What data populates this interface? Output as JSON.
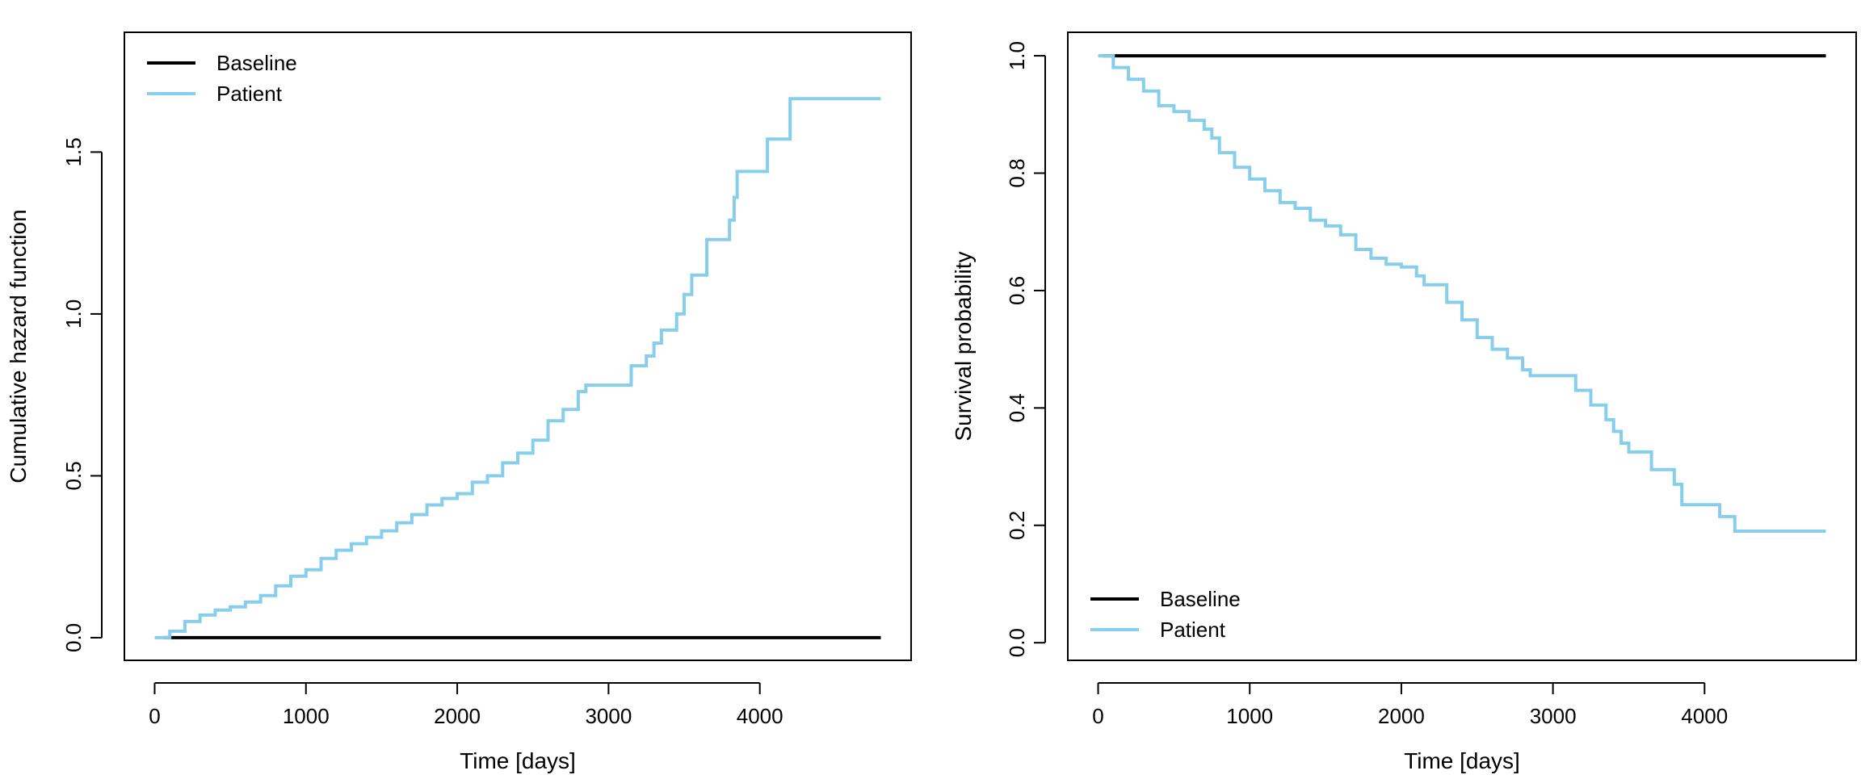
{
  "colors": {
    "baseline": "#000000",
    "patient": "#87ceeb"
  },
  "chart_data": [
    {
      "type": "line",
      "step": true,
      "xlabel": "Time [days]",
      "ylabel": "Cumulative hazard function",
      "xlim": [
        -200,
        5000
      ],
      "ylim": [
        -0.07,
        1.87
      ],
      "xticks": [
        0,
        1000,
        2000,
        3000,
        4000
      ],
      "yticks": [
        0.0,
        0.5,
        1.0,
        1.5
      ],
      "xtick_labels": [
        "0",
        "1000",
        "2000",
        "3000",
        "4000"
      ],
      "ytick_labels": [
        "0.0",
        "0.5",
        "1.0",
        "1.5"
      ],
      "legend": {
        "position": "top-left",
        "entries": [
          "Baseline",
          "Patient"
        ]
      },
      "series": [
        {
          "name": "Baseline",
          "color": "baseline",
          "x": [
            60,
            4800
          ],
          "y": [
            0.0,
            0.0
          ]
        },
        {
          "name": "Patient",
          "color": "patient",
          "x": [
            0,
            100,
            200,
            300,
            400,
            500,
            600,
            700,
            800,
            900,
            1000,
            1100,
            1200,
            1300,
            1400,
            1500,
            1600,
            1700,
            1800,
            1900,
            2000,
            2100,
            2200,
            2300,
            2400,
            2500,
            2600,
            2700,
            2800,
            2850,
            3100,
            3150,
            3200,
            3250,
            3300,
            3350,
            3400,
            3450,
            3500,
            3550,
            3600,
            3650,
            3750,
            3800,
            3830,
            3850,
            3900,
            4000,
            4050,
            4100,
            4200,
            4300,
            4800
          ],
          "y": [
            0.0,
            0.02,
            0.05,
            0.07,
            0.085,
            0.095,
            0.11,
            0.13,
            0.16,
            0.19,
            0.21,
            0.245,
            0.27,
            0.29,
            0.31,
            0.33,
            0.355,
            0.38,
            0.41,
            0.43,
            0.445,
            0.48,
            0.5,
            0.54,
            0.57,
            0.61,
            0.67,
            0.705,
            0.76,
            0.78,
            0.78,
            0.84,
            0.84,
            0.87,
            0.91,
            0.95,
            0.95,
            1.0,
            1.06,
            1.12,
            1.12,
            1.23,
            1.23,
            1.29,
            1.36,
            1.44,
            1.44,
            1.44,
            1.54,
            1.54,
            1.665,
            1.665,
            1.665
          ]
        }
      ]
    },
    {
      "type": "line",
      "step": true,
      "xlabel": "Time [days]",
      "ylabel": "Survival probability",
      "xlim": [
        -200,
        5000
      ],
      "ylim": [
        -0.03,
        1.04
      ],
      "xticks": [
        0,
        1000,
        2000,
        3000,
        4000
      ],
      "yticks": [
        0.0,
        0.2,
        0.4,
        0.6,
        0.8,
        1.0
      ],
      "xtick_labels": [
        "0",
        "1000",
        "2000",
        "3000",
        "4000"
      ],
      "ytick_labels": [
        "0.0",
        "0.2",
        "0.4",
        "0.6",
        "0.8",
        "1.0"
      ],
      "legend": {
        "position": "bottom-left",
        "entries": [
          "Baseline",
          "Patient"
        ]
      },
      "series": [
        {
          "name": "Baseline",
          "color": "baseline",
          "x": [
            30,
            4800
          ],
          "y": [
            1.0,
            1.0
          ]
        },
        {
          "name": "Patient",
          "color": "patient",
          "x": [
            0,
            100,
            200,
            300,
            400,
            500,
            600,
            700,
            750,
            800,
            900,
            1000,
            1100,
            1200,
            1300,
            1400,
            1500,
            1600,
            1700,
            1800,
            1900,
            2000,
            2100,
            2150,
            2300,
            2400,
            2500,
            2600,
            2700,
            2800,
            2850,
            3100,
            3150,
            3250,
            3350,
            3400,
            3450,
            3500,
            3600,
            3650,
            3750,
            3800,
            3850,
            4000,
            4100,
            4200,
            4800
          ],
          "y": [
            1.0,
            0.98,
            0.96,
            0.94,
            0.915,
            0.905,
            0.89,
            0.875,
            0.86,
            0.835,
            0.81,
            0.79,
            0.77,
            0.75,
            0.74,
            0.72,
            0.71,
            0.695,
            0.67,
            0.655,
            0.645,
            0.64,
            0.625,
            0.61,
            0.58,
            0.55,
            0.52,
            0.5,
            0.485,
            0.465,
            0.455,
            0.455,
            0.43,
            0.405,
            0.38,
            0.36,
            0.34,
            0.325,
            0.325,
            0.295,
            0.295,
            0.27,
            0.235,
            0.235,
            0.215,
            0.19,
            0.19
          ]
        }
      ]
    }
  ]
}
